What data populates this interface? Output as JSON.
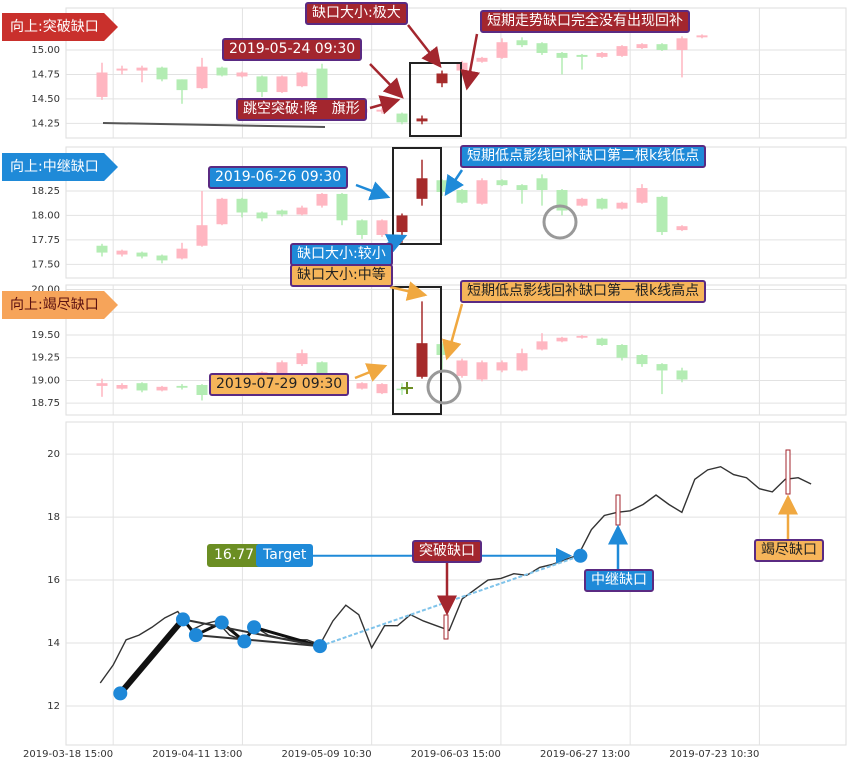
{
  "chart_data": [
    {
      "type": "candlestick",
      "title": "向上:突破缺口",
      "open": [
        14.52,
        14.79,
        14.79,
        14.82,
        14.7,
        14.61,
        14.82,
        14.73,
        14.73,
        14.57,
        14.63,
        14.81,
        14.46,
        14.36,
        14.37,
        14.35,
        14.27,
        14.66,
        14.79,
        14.88,
        14.92,
        15.1,
        15.07,
        14.97,
        14.95,
        14.93,
        14.94,
        15.02,
        15.06,
        15.0,
        15.13
      ],
      "high": [
        14.87,
        14.84,
        14.84,
        14.83,
        14.7,
        14.92,
        14.83,
        14.78,
        14.74,
        14.74,
        14.78,
        14.86,
        14.48,
        14.42,
        14.41,
        14.36,
        14.33,
        14.79,
        14.89,
        14.93,
        15.12,
        15.13,
        15.08,
        14.98,
        14.96,
        14.98,
        15.05,
        15.07,
        15.07,
        15.14,
        15.16
      ],
      "low": [
        14.49,
        14.75,
        14.67,
        14.68,
        14.45,
        14.6,
        14.73,
        14.72,
        14.52,
        14.56,
        14.62,
        14.49,
        14.38,
        14.34,
        14.35,
        14.24,
        14.24,
        14.62,
        14.78,
        14.87,
        14.91,
        15.03,
        14.95,
        14.75,
        14.8,
        14.92,
        14.93,
        15.01,
        14.99,
        14.72,
        15.12
      ],
      "close": [
        14.77,
        14.81,
        14.82,
        14.7,
        14.59,
        14.83,
        14.74,
        14.77,
        14.57,
        14.73,
        14.77,
        14.5,
        14.4,
        14.4,
        14.39,
        14.26,
        14.3,
        14.76,
        14.87,
        14.92,
        15.08,
        15.05,
        14.97,
        14.92,
        14.93,
        14.97,
        15.04,
        15.06,
        15.0,
        15.12,
        15.15
      ],
      "up_color": "#ffb6c1",
      "down_color": "#b3ecb3",
      "highlight": [
        16,
        17
      ],
      "highlight_color": "#a52a2a",
      "xlim": [
        -1.8,
        37.2
      ],
      "ylim": [
        14.1,
        15.43
      ],
      "yticks": [
        14.25,
        {
          "value": 14.5,
          "label": "14.50"
        },
        14.75,
        {
          "value": 15,
          "label": "15.00"
        }
      ],
      "grid": true,
      "annotations": [
        "缺口大小:极大",
        "短期走势缺口完全没有出现回补",
        "2019-05-24 09:30",
        "跳空突破:降　旗形"
      ]
    },
    {
      "type": "candlestick",
      "title": "向上:中继缺口",
      "open": [
        17.69,
        17.6,
        17.62,
        17.59,
        17.56,
        17.69,
        17.91,
        18.17,
        18.03,
        18.05,
        18.01,
        18.1,
        18.22,
        17.95,
        17.8,
        17.83,
        18.17,
        18.36,
        18.26,
        18.12,
        18.36,
        18.31,
        18.38,
        18.26,
        18.1,
        18.17,
        18.07,
        18.13,
        18.19,
        17.85
      ],
      "high": [
        17.71,
        17.65,
        17.63,
        17.6,
        17.72,
        18.25,
        18.18,
        18.18,
        18.04,
        18.06,
        18.1,
        18.23,
        18.23,
        17.96,
        17.96,
        18.02,
        18.57,
        18.37,
        18.27,
        18.38,
        18.37,
        18.32,
        18.42,
        18.27,
        18.18,
        18.18,
        18.14,
        18.32,
        18.2,
        17.9
      ],
      "low": [
        17.58,
        17.58,
        17.56,
        17.51,
        17.55,
        17.68,
        17.9,
        17.98,
        17.94,
        17.99,
        18.0,
        18.08,
        17.9,
        17.76,
        17.78,
        17.72,
        18.1,
        18.2,
        18.12,
        18.11,
        18.3,
        18.12,
        18.1,
        18.0,
        18.09,
        18.06,
        18.06,
        18.12,
        17.8,
        17.84
      ],
      "close": [
        17.62,
        17.64,
        17.58,
        17.54,
        17.66,
        17.9,
        18.17,
        18.03,
        17.97,
        18.01,
        18.08,
        18.22,
        17.95,
        17.8,
        17.95,
        18.0,
        18.38,
        18.24,
        18.13,
        18.36,
        18.31,
        18.26,
        18.26,
        18.05,
        18.17,
        18.07,
        18.13,
        18.28,
        17.83,
        17.89
      ],
      "up_color": "#ffb6c1",
      "down_color": "#b3ecb3",
      "highlight": [
        15,
        16
      ],
      "highlight_color": "#a52a2a",
      "xlim": [
        -1.8,
        37.2
      ],
      "ylim": [
        17.36,
        18.7
      ],
      "yticks": [
        {
          "value": 17.5,
          "label": "17.50"
        },
        17.75,
        {
          "value": 18,
          "label": "18.00"
        },
        18.25
      ],
      "grid": true,
      "annotations": [
        "2019-06-26 09:30",
        "短期低点影线回补缺口第二根k线低点",
        "缺口大小:较小"
      ]
    },
    {
      "type": "candlestick",
      "title": "向上:竭尽缺口",
      "open": [
        18.94,
        18.91,
        18.97,
        18.89,
        18.94,
        18.95,
        18.93,
        19.03,
        19.03,
        19.07,
        19.18,
        19.2,
        19.03,
        18.91,
        18.86,
        18.91,
        19.04,
        19.4,
        19.05,
        19.01,
        19.11,
        19.11,
        19.34,
        19.43,
        19.47,
        19.46,
        19.39,
        19.28,
        19.18,
        19.11
      ],
      "high": [
        19.02,
        18.97,
        18.98,
        18.94,
        18.96,
        18.96,
        19.0,
        19.04,
        19.1,
        19.22,
        19.34,
        19.21,
        19.05,
        18.98,
        18.97,
        18.97,
        19.87,
        19.42,
        19.24,
        19.22,
        19.22,
        19.35,
        19.52,
        19.48,
        19.5,
        19.47,
        19.4,
        19.29,
        19.19,
        19.14
      ],
      "low": [
        18.82,
        18.9,
        18.87,
        18.88,
        18.9,
        18.78,
        18.92,
        18.94,
        19.02,
        19.06,
        19.16,
        19.03,
        18.92,
        18.9,
        18.85,
        18.84,
        19.02,
        19.1,
        19.03,
        18.99,
        19.09,
        19.1,
        19.33,
        19.42,
        19.46,
        19.38,
        19.22,
        19.15,
        18.85,
        18.98
      ],
      "close": [
        18.97,
        18.95,
        18.89,
        18.93,
        18.92,
        18.84,
        18.99,
        18.95,
        19.09,
        19.2,
        19.3,
        19.05,
        18.94,
        18.97,
        18.96,
        18.9,
        19.41,
        19.28,
        19.22,
        19.2,
        19.2,
        19.3,
        19.43,
        19.47,
        19.49,
        19.39,
        19.25,
        19.18,
        19.11,
        19.01
      ],
      "up_color": "#ffb6c1",
      "down_color": "#b3ecb3",
      "highlight": [
        16
      ],
      "highlight_color": "#a52a2a",
      "xlim": [
        -1.8,
        37.2
      ],
      "ylim": [
        18.62,
        20.05
      ],
      "yticks": [
        18.75,
        {
          "value": 19,
          "label": "19.00"
        },
        19.25,
        {
          "value": 19.5,
          "label": "19.50"
        },
        19.75,
        {
          "value": 20,
          "label": "20.00"
        }
      ],
      "grid": true,
      "annotations": [
        "缺口大小:中等",
        "短期低点影线回补缺口第一根k线高点",
        "2019-07-29 09:30"
      ]
    },
    {
      "type": "line",
      "x": [
        3,
        5,
        7,
        9,
        11,
        13,
        15,
        17,
        19,
        21,
        23,
        25,
        27,
        29,
        31,
        33,
        35,
        37,
        39,
        41,
        43,
        45,
        47,
        49,
        51,
        53,
        55,
        57,
        59,
        61,
        63,
        65,
        67,
        69,
        71,
        73,
        75,
        77,
        79,
        81,
        83,
        85,
        87,
        89,
        91,
        93,
        95,
        97,
        99,
        101,
        103,
        105,
        107,
        109,
        111,
        113
      ],
      "values": [
        12.73,
        13.3,
        14.1,
        14.25,
        14.5,
        14.8,
        15.0,
        14.4,
        14.6,
        14.7,
        14.25,
        14.1,
        14.5,
        14.25,
        14.15,
        14.1,
        14.1,
        13.95,
        14.7,
        15.2,
        14.9,
        13.85,
        14.55,
        14.55,
        14.9,
        14.7,
        14.55,
        14.4,
        15.4,
        15.7,
        16.0,
        16.05,
        16.2,
        16.15,
        16.4,
        16.5,
        16.65,
        16.8,
        17.6,
        18.05,
        18.15,
        18.2,
        18.4,
        18.7,
        18.4,
        18.15,
        19.2,
        19.5,
        19.6,
        19.35,
        19.25,
        18.9,
        18.8,
        19.2,
        19.25,
        19.05
      ],
      "color": "#333333",
      "markers": {
        "x": [
          6.1,
          15.8,
          17.8,
          21.8,
          25.3,
          26.8,
          37.0,
          77.3
        ],
        "values": [
          12.4,
          14.75,
          14.25,
          14.65,
          14.05,
          14.5,
          13.9,
          16.77
        ],
        "color": "#1e88d8"
      },
      "target": {
        "value": 16.77,
        "label": "Target"
      },
      "xlim": [
        -2.3,
        118.4
      ],
      "xticks": [
        {
          "value": 5,
          "label": "2019-03-18 15:00"
        },
        {
          "value": 25,
          "label": "2019-04-11 13:00"
        },
        {
          "value": 45,
          "label": "2019-05-09 10:30"
        },
        {
          "value": 65,
          "label": "2019-06-03 15:00"
        },
        {
          "value": 85,
          "label": "2019-06-27 13:00"
        },
        {
          "value": 105,
          "label": "2019-07-23 10:30"
        }
      ],
      "ylim": [
        10.76,
        21.02
      ],
      "yticks": [
        12,
        14,
        16,
        18,
        20
      ],
      "grid": true,
      "annotations": [
        "突破缺口",
        "中继缺口",
        "竭尽缺口"
      ]
    }
  ]
}
